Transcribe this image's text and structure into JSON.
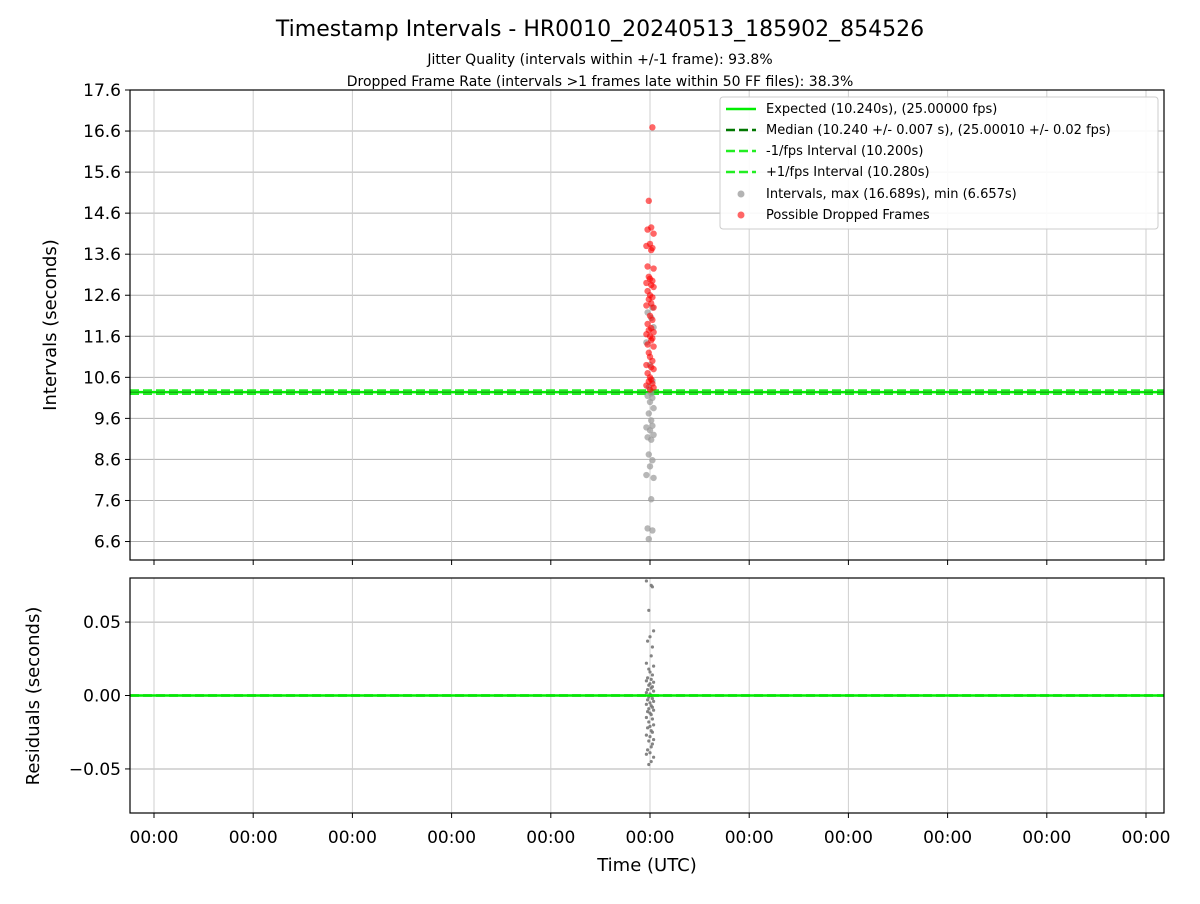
{
  "chart_data": {
    "title": "Timestamp Intervals - HR0010_20240513_185902_854526",
    "subtitle_lines": [
      "Jitter Quality (intervals within +/-1 frame): 93.8%",
      "Dropped Frame Rate (intervals >1 frames late within 50 FF files): 38.3%"
    ],
    "xlabel": "Time (UTC)",
    "x_tick_labels": [
      "00:00",
      "00:00",
      "00:00",
      "00:00",
      "00:00",
      "00:00",
      "00:00",
      "00:00",
      "00:00",
      "00:00",
      "00:00"
    ],
    "grid": true,
    "panels": [
      {
        "type": "scatter",
        "ylabel": "Intervals (seconds)",
        "ylim": [
          6.15,
          17.6
        ],
        "y_ticks": [
          6.6,
          7.6,
          8.6,
          9.6,
          10.6,
          11.6,
          12.6,
          13.6,
          14.6,
          15.6,
          16.6,
          17.6
        ],
        "y_tick_labels": [
          "6.6",
          "7.6",
          "8.6",
          "9.6",
          "10.6",
          "11.6",
          "12.6",
          "13.6",
          "14.6",
          "15.6",
          "16.6",
          "17.6"
        ],
        "legend_position": "top-right",
        "lines": [
          {
            "name": "Expected (10.240s), (25.00000 fps)",
            "value": 10.24,
            "color": "#00ee00",
            "style": "solid"
          },
          {
            "name": "Median (10.240 +/- 0.007 s), (25.00010 +/- 0.02 fps)",
            "value": 10.24,
            "color": "#007700",
            "style": "dashed"
          },
          {
            "name": "-1/fps Interval (10.200s)",
            "value": 10.2,
            "color": "#22ee22",
            "style": "dashed"
          },
          {
            "name": "+1/fps Interval (10.280s)",
            "value": 10.28,
            "color": "#22ee22",
            "style": "dashed"
          }
        ],
        "series": [
          {
            "name": "Intervals, max (16.689s), min (6.657s)",
            "color": "#999999",
            "x": [
              -0.01,
              0.02,
              -0.02,
              0.01,
              0.03,
              -0.03,
              0.0,
              0.02,
              -0.01,
              0.01,
              -0.02,
              0.03,
              0.0,
              -0.03,
              0.02,
              0.01,
              -0.01,
              0.03,
              0.0,
              0.02,
              -0.02,
              0.01,
              -0.01,
              0.02,
              0.0,
              -0.03,
              0.03,
              0.01,
              -0.02,
              0.02
            ],
            "y": [
              6.66,
              6.87,
              6.92,
              7.63,
              8.15,
              8.22,
              8.43,
              8.58,
              8.72,
              9.08,
              9.14,
              9.2,
              9.31,
              9.38,
              9.42,
              9.55,
              9.72,
              9.85,
              10.0,
              10.1,
              10.15,
              10.21,
              10.36,
              10.52,
              10.9,
              11.45,
              11.82,
              12.05,
              12.18,
              12.3
            ]
          },
          {
            "name": "Possible Dropped Frames",
            "color": "#ff0000",
            "x": [
              0.02,
              -0.01,
              0.01,
              -0.02,
              0.03,
              0.0,
              -0.03,
              0.02,
              0.01,
              -0.02,
              0.03,
              -0.01,
              0.0,
              0.02,
              -0.03,
              0.01,
              0.03,
              -0.02,
              0.0,
              0.02,
              -0.01,
              0.01,
              -0.03,
              0.03,
              0.0,
              0.02,
              -0.02,
              0.01,
              -0.01,
              0.03,
              -0.03,
              0.0,
              0.02,
              0.01,
              -0.02,
              0.03,
              -0.01,
              0.0,
              0.02,
              -0.03,
              0.01,
              0.03,
              -0.02,
              0.0,
              0.01,
              -0.01,
              0.02,
              -0.03,
              0.03,
              0.0
            ],
            "y": [
              16.69,
              14.9,
              14.25,
              14.2,
              14.1,
              13.85,
              13.8,
              13.75,
              13.7,
              13.3,
              13.25,
              13.05,
              13.0,
              12.95,
              12.9,
              12.85,
              12.8,
              12.7,
              12.6,
              12.55,
              12.5,
              12.4,
              12.35,
              12.3,
              12.1,
              12.0,
              11.9,
              11.8,
              11.75,
              11.7,
              11.65,
              11.6,
              11.55,
              11.5,
              11.4,
              11.35,
              11.2,
              11.1,
              11.0,
              10.9,
              10.85,
              10.8,
              10.7,
              10.6,
              10.55,
              10.5,
              10.45,
              10.4,
              10.35,
              10.3
            ]
          }
        ]
      },
      {
        "type": "scatter",
        "ylabel": "Residuals (seconds)",
        "ylim": [
          -0.08,
          0.08
        ],
        "y_ticks": [
          -0.05,
          0.0,
          0.05
        ],
        "y_tick_labels": [
          "−0.05",
          "0.00",
          "0.05"
        ],
        "lines": [
          {
            "name": "Median",
            "value": 0.0,
            "color": "#007700",
            "style": "dashed"
          },
          {
            "name": "Expected",
            "value": 0.0,
            "color": "#00ee00",
            "style": "solid"
          }
        ],
        "series": [
          {
            "name": "Residuals",
            "color": "#777777",
            "x": [
              -0.03,
              0.01,
              0.02,
              -0.01,
              0.03,
              0.0,
              -0.02,
              0.02,
              0.01,
              -0.03,
              0.03,
              -0.01,
              0.0,
              0.02,
              -0.02,
              0.01,
              -0.03,
              0.03,
              0.0,
              -0.01,
              0.02,
              0.01,
              -0.02,
              0.03,
              -0.03,
              0.0,
              0.01,
              -0.01,
              0.02,
              -0.02,
              0.03,
              0.0,
              -0.03,
              0.01,
              0.02,
              -0.01,
              0.03,
              -0.02,
              0.0,
              0.01,
              -0.03,
              0.02,
              -0.01,
              0.03,
              0.0,
              -0.02,
              0.01,
              0.02,
              -0.03,
              0.0,
              0.03,
              -0.01,
              0.02,
              0.01,
              -0.02,
              0.0,
              -0.03,
              0.03,
              0.01,
              -0.01
            ],
            "y": [
              0.078,
              0.075,
              0.074,
              0.058,
              0.044,
              0.04,
              0.037,
              0.033,
              0.027,
              0.022,
              0.02,
              0.018,
              0.016,
              0.014,
              0.012,
              0.011,
              0.01,
              0.009,
              0.008,
              0.007,
              0.006,
              0.005,
              0.004,
              0.003,
              0.002,
              0.001,
              0.0,
              -0.001,
              -0.002,
              -0.003,
              -0.004,
              -0.005,
              -0.006,
              -0.007,
              -0.008,
              -0.009,
              -0.01,
              -0.011,
              -0.012,
              -0.013,
              -0.015,
              -0.016,
              -0.018,
              -0.02,
              -0.021,
              -0.022,
              -0.024,
              -0.025,
              -0.027,
              -0.028,
              -0.03,
              -0.031,
              -0.033,
              -0.035,
              -0.037,
              -0.039,
              -0.04,
              -0.042,
              -0.045,
              -0.047
            ]
          }
        ]
      }
    ]
  }
}
